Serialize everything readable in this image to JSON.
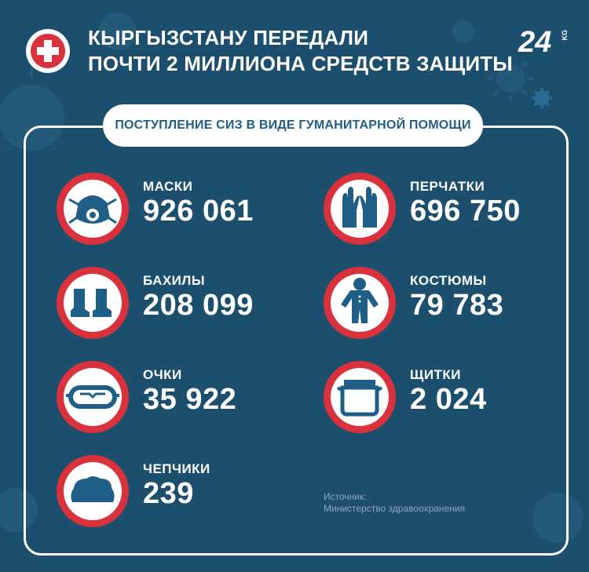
{
  "header": {
    "title_line1": "КЫРГЫЗСТАНУ ПЕРЕДАЛИ",
    "title_line2": "ПОЧТИ 2 МИЛЛИОНА СРЕДСТВ ЗАЩИТЫ",
    "logo_text": "24",
    "logo_suffix": "KG"
  },
  "subtitle": "ПОСТУПЛЕНИЕ СИЗ В ВИДЕ ГУМАНИТАРНОЙ ПОМОЩИ",
  "items": [
    {
      "label": "МАСКИ",
      "value": "926 061",
      "icon": "mask-icon"
    },
    {
      "label": "ПЕРЧАТКИ",
      "value": "696 750",
      "icon": "gloves-icon"
    },
    {
      "label": "БАХИЛЫ",
      "value": "208 099",
      "icon": "shoe-covers-icon"
    },
    {
      "label": "КОСТЮМЫ",
      "value": "79 783",
      "icon": "suit-icon"
    },
    {
      "label": "ОЧКИ",
      "value": "35 922",
      "icon": "goggles-icon"
    },
    {
      "label": "ЩИТКИ",
      "value": "2 024",
      "icon": "face-shield-icon"
    },
    {
      "label": "ЧЕПЧИКИ",
      "value": "239",
      "icon": "cap-icon"
    }
  ],
  "source": {
    "line1": "Источник:",
    "line2": "Министерство здравоохранения"
  },
  "colors": {
    "background": "#1c4f6e",
    "accent_red": "#d9323c",
    "icon_blue": "#1f5f87",
    "text": "#ffffff"
  }
}
